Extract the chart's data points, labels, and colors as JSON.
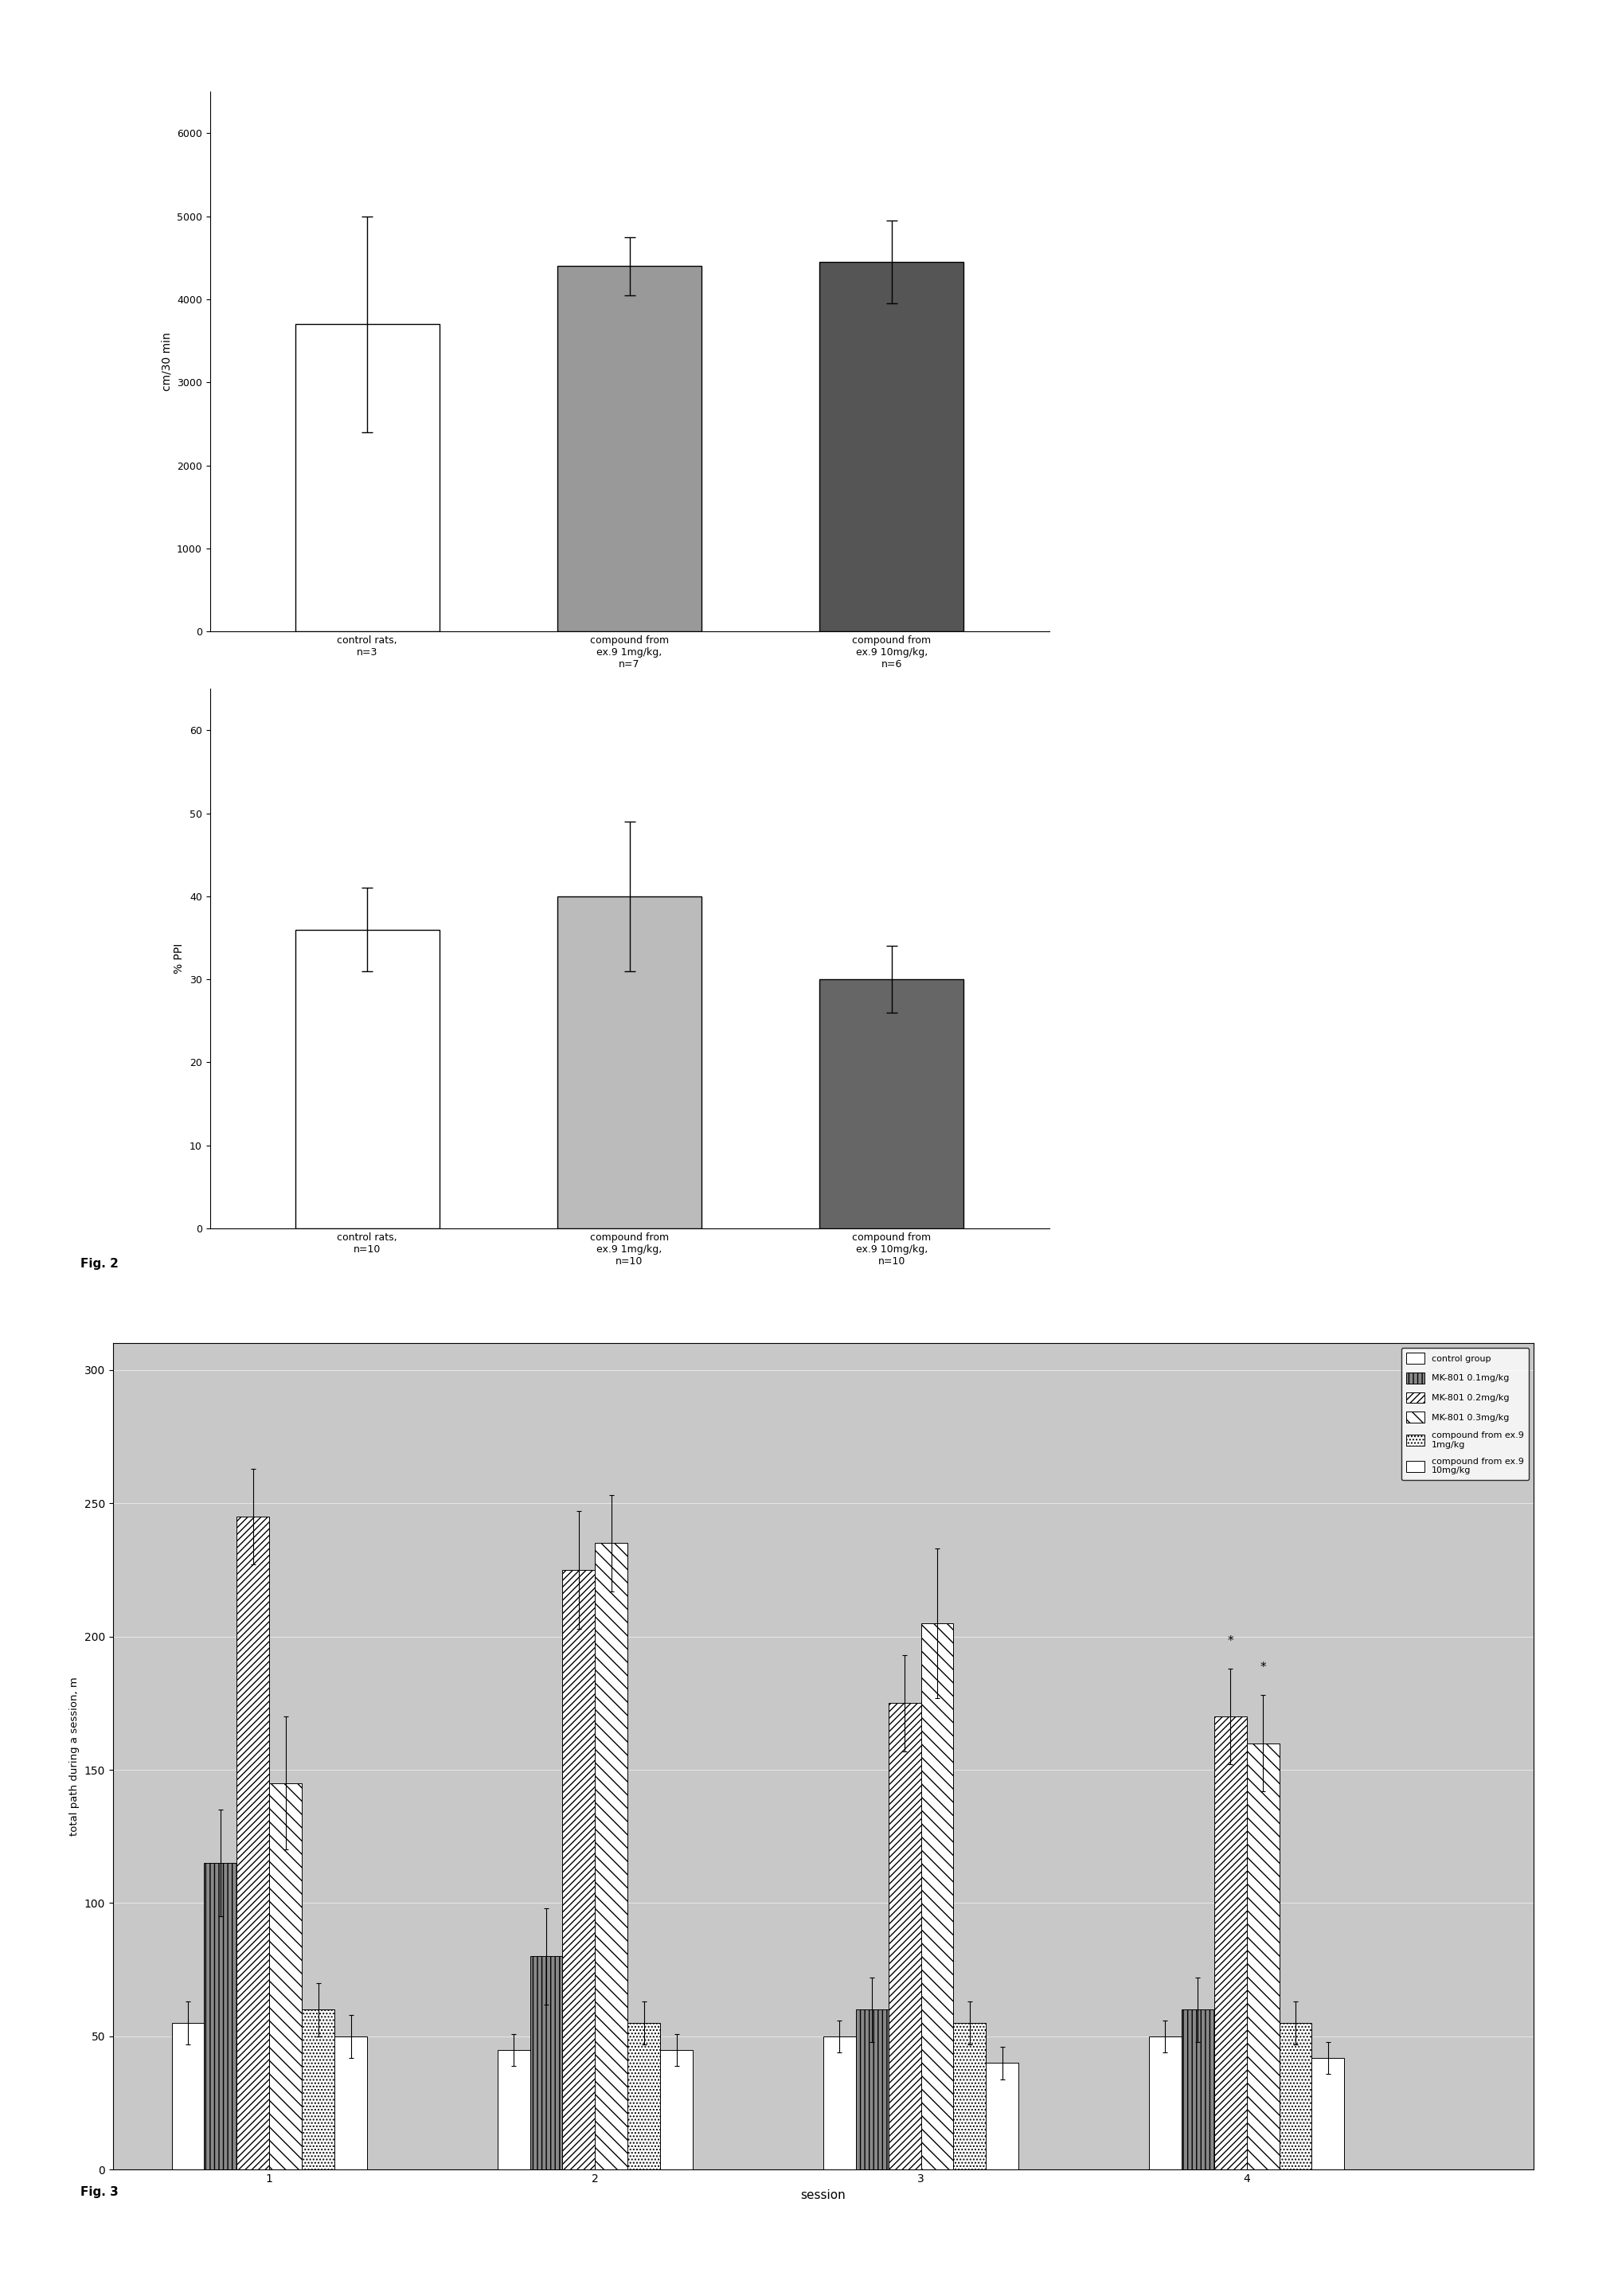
{
  "fig2_top": {
    "categories": [
      "control rats,\nn=3",
      "compound from\nex.9 1mg/kg,\nn=7",
      "compound from\nex.9 10mg/kg,\nn=6"
    ],
    "values": [
      3700,
      4400,
      4450
    ],
    "errors": [
      1300,
      350,
      500
    ],
    "colors": [
      "white",
      "#999999",
      "#555555"
    ],
    "ylabel": "cm/30 min",
    "yticks": [
      0,
      1000,
      2000,
      3000,
      4000,
      5000,
      6000
    ],
    "ylim": [
      0,
      6500
    ]
  },
  "fig2_bottom": {
    "categories": [
      "control rats,\nn=10",
      "compound from\nex.9 1mg/kg,\nn=10",
      "compound from\nex.9 10mg/kg,\nn=10"
    ],
    "values": [
      36,
      40,
      30
    ],
    "errors": [
      5,
      9,
      4
    ],
    "colors": [
      "white",
      "#bbbbbb",
      "#666666"
    ],
    "ylabel": "% PPI",
    "yticks": [
      0,
      10,
      20,
      30,
      40,
      50,
      60
    ],
    "ylim": [
      0,
      65
    ]
  },
  "fig3": {
    "sessions": [
      1,
      2,
      3,
      4
    ],
    "session_labels": [
      "1",
      "2",
      "3",
      "4"
    ],
    "legend_labels": [
      "control group",
      "MK-801 0.1mg/kg",
      "MK-801 0.2mg/kg",
      "MK-801 0.3mg/kg",
      "compound from ex.9\n1mg/kg",
      "compound from ex.9\n10mg/kg"
    ],
    "values": [
      [
        55,
        115,
        245,
        145,
        60,
        50
      ],
      [
        45,
        80,
        225,
        235,
        55,
        45
      ],
      [
        50,
        60,
        175,
        205,
        55,
        40
      ],
      [
        50,
        60,
        170,
        160,
        55,
        42
      ]
    ],
    "errors": [
      [
        8,
        20,
        18,
        25,
        10,
        8
      ],
      [
        6,
        18,
        22,
        18,
        8,
        6
      ],
      [
        6,
        12,
        18,
        28,
        8,
        6
      ],
      [
        6,
        12,
        18,
        18,
        8,
        6
      ]
    ],
    "colors": [
      "white",
      "#888888",
      "white",
      "white",
      "white",
      "white"
    ],
    "hatches": [
      "",
      "|||",
      "////",
      "\\\\\\\\",
      ".....",
      "####"
    ],
    "ylabel": "total path during a session, m",
    "xlabel": "session",
    "yticks": [
      0,
      50,
      100,
      150,
      200,
      250,
      300
    ],
    "ylim": [
      0,
      310
    ],
    "bg_color": "#c8c8c8"
  }
}
